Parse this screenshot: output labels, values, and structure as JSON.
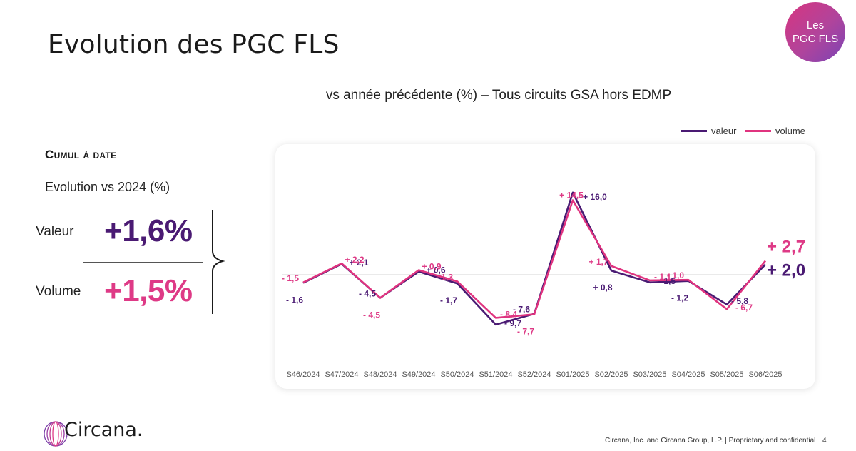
{
  "page": {
    "title": "Evolution des PGC FLS",
    "badge_line1": "Les",
    "badge_line2": "PGC FLS",
    "subtitle": "vs année précédente (%) – Tous circuits GSA hors EDMP"
  },
  "cumul": {
    "title": "Cumul à date",
    "evolution_label": "Evolution vs 2024 (%)",
    "valeur_label": "Valeur",
    "valeur_value": "+1,6%",
    "volume_label": "Volume",
    "volume_value": "+1,5%"
  },
  "colors": {
    "valeur": "#4a1a73",
    "volume": "#e0337f",
    "valeur_text": "#4a1a73",
    "volume_text": "#de3a86"
  },
  "legend": {
    "valeur": "valeur",
    "volume": "volume"
  },
  "footer": {
    "logo": "Circana.",
    "note": "Circana, Inc. and Circana Group, L.P. |  Proprietary and confidential",
    "page_number": "4"
  },
  "chart_data": {
    "type": "line",
    "categories": [
      "S46/2024",
      "S47/2024",
      "S48/2024",
      "S49/2024",
      "S50/2024",
      "S51/2024",
      "S52/2024",
      "S01/2025",
      "S02/2025",
      "S03/2025",
      "S04/2025",
      "S05/2025",
      "S06/2025"
    ],
    "series": [
      {
        "name": "valeur",
        "values": [
          -1.6,
          2.1,
          -4.5,
          0.6,
          -1.7,
          -9.7,
          -7.6,
          16.0,
          0.8,
          -1.5,
          -1.2,
          -5.8,
          2.0
        ],
        "labels": [
          "- 1,6",
          "+ 2,1",
          "- 4,5",
          "+ 0,6",
          "- 1,7",
          "- 9,7",
          "- 7,6",
          "+ 16,0",
          "+ 0,8",
          "- 1,5",
          "- 1,2",
          "- 5,8",
          "+ 2,0"
        ]
      },
      {
        "name": "volume",
        "values": [
          -1.5,
          2.2,
          -4.5,
          0.9,
          -1.3,
          -8.4,
          -7.7,
          14.5,
          1.7,
          -1.1,
          -1.0,
          -6.7,
          2.7
        ],
        "labels": [
          "- 1,5",
          "+ 2,2",
          "- 4,5",
          "+ 0,9",
          "- 1,3",
          "- 8,4",
          "- 7,7",
          "+ 14,5",
          "+ 1,7",
          "- 1,1",
          "- 1,0",
          "- 6,7",
          "+ 2,7"
        ]
      }
    ],
    "ylim": [
      -12,
      18
    ],
    "grid": false,
    "zero_line": true,
    "legend_position": "top-right"
  }
}
